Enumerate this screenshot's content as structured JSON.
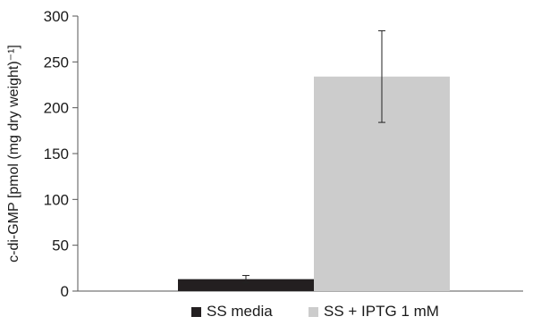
{
  "chart_data": {
    "type": "bar",
    "title": "",
    "xlabel": "",
    "ylabel": "c-di-GMP [pmol (mg dry weight)⁻¹]",
    "ylim": [
      0,
      300
    ],
    "yticks": [
      0,
      50,
      100,
      150,
      200,
      250,
      300
    ],
    "grid": false,
    "legend_position": "bottom",
    "series": [
      {
        "name": "SS media",
        "value": 13,
        "error": 4,
        "color": "#231f20"
      },
      {
        "name": "SS + IPTG 1 mM",
        "value": 234,
        "error": 50,
        "color": "#cccccc"
      }
    ]
  }
}
